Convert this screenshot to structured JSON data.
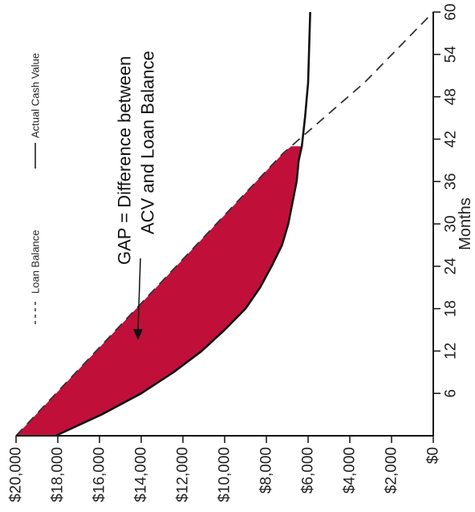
{
  "chart_data": {
    "type": "area",
    "orientation": "rotated-90-clockwise",
    "x": {
      "label": "Months",
      "range": [
        0,
        60
      ],
      "ticks": [
        6,
        12,
        18,
        24,
        30,
        36,
        42,
        48,
        54,
        60
      ],
      "tick_labels": [
        "6",
        "12",
        "18",
        "24",
        "30",
        "36",
        "42",
        "48",
        "54",
        "60"
      ]
    },
    "y": {
      "label": "",
      "range": [
        0,
        20000
      ],
      "ticks": [
        0,
        2000,
        4000,
        6000,
        8000,
        10000,
        12000,
        14000,
        16000,
        18000,
        20000
      ],
      "tick_labels": [
        "$0",
        "$2,000",
        "$4,000",
        "$6,000",
        "$8,000",
        "$10,000",
        "$12,000",
        "$14,000",
        "$16,000",
        "$18,000",
        "$20,000"
      ]
    },
    "series": [
      {
        "name": "Loan Balance",
        "style": "dashed",
        "color": "#333333",
        "points": [
          [
            0,
            20000
          ],
          [
            10,
            16800
          ],
          [
            20,
            13600
          ],
          [
            30,
            10400
          ],
          [
            40,
            7200
          ],
          [
            50,
            3300
          ],
          [
            60,
            0
          ]
        ]
      },
      {
        "name": "Actual Cash Value",
        "style": "solid",
        "color": "#111111",
        "points": [
          [
            0,
            18100
          ],
          [
            3,
            15900
          ],
          [
            6,
            14000
          ],
          [
            9,
            12450
          ],
          [
            12,
            11100
          ],
          [
            15,
            10000
          ],
          [
            18,
            9000
          ],
          [
            21,
            8300
          ],
          [
            24,
            7750
          ],
          [
            27,
            7250
          ],
          [
            30,
            6950
          ],
          [
            33,
            6750
          ],
          [
            36,
            6550
          ],
          [
            39,
            6450
          ],
          [
            41,
            6300
          ],
          [
            45,
            6150
          ],
          [
            50,
            6000
          ],
          [
            55,
            5950
          ],
          [
            60,
            5900
          ]
        ]
      }
    ],
    "gap": {
      "label": "GAP = Difference between ACV and Loan Balance",
      "color": "#c0103a",
      "from_month": 0,
      "to_month": 41
    },
    "legend": {
      "position": "top-left",
      "entries": [
        "Loan Balance",
        "Actual Cash Value"
      ]
    },
    "annotation_lines": [
      "GAP = Difference between",
      "ACV and Loan Balance"
    ],
    "grid": false
  }
}
